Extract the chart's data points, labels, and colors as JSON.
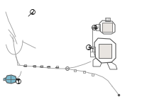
{
  "bg_color": "#ffffff",
  "line_color": "#999999",
  "part_color": "#7ab8cc",
  "part_outline": "#555555",
  "label_color": "#000000",
  "fig_width": 2.0,
  "fig_height": 1.47,
  "dpi": 100
}
